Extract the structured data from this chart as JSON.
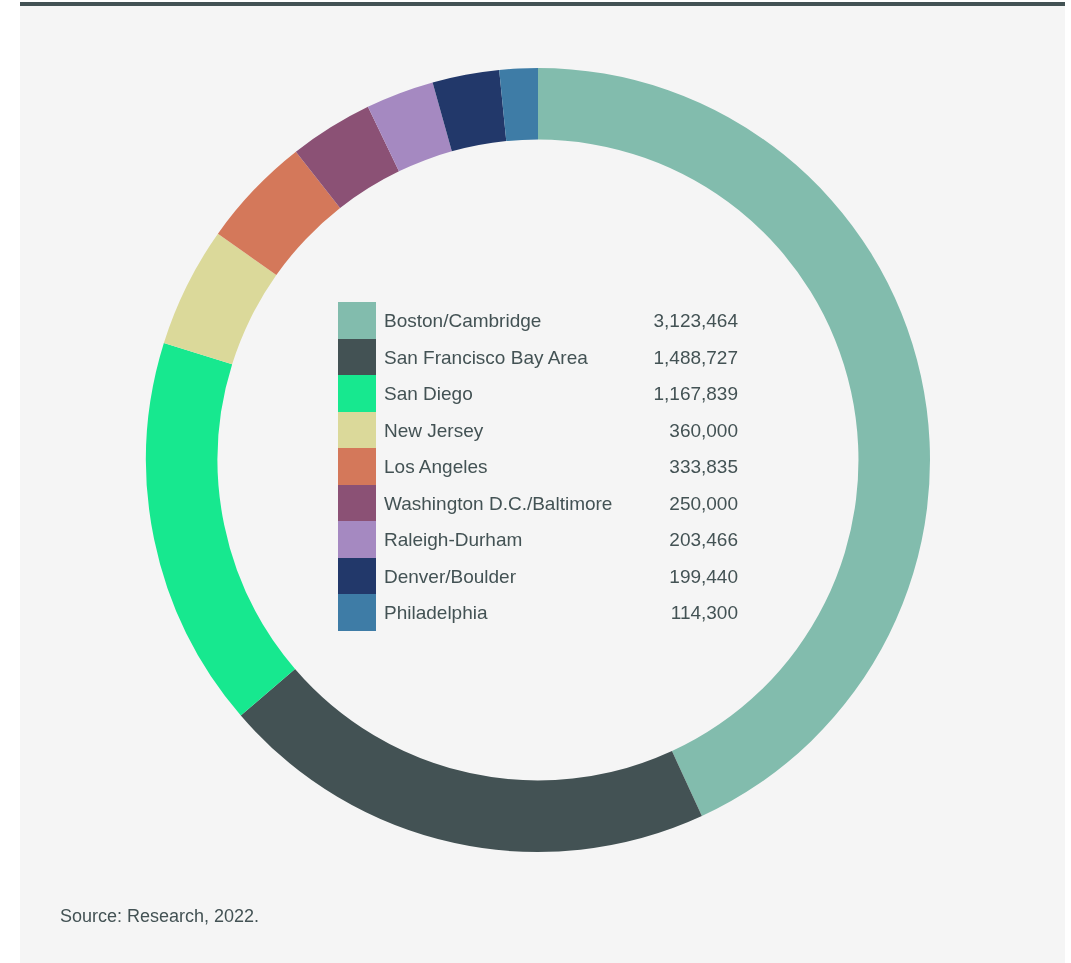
{
  "chart_data": {
    "type": "donut",
    "categories": [
      "Boston/Cambridge",
      "San Francisco Bay Area",
      "San Diego",
      "New Jersey",
      "Los Angeles",
      "Washington D.C./Baltimore",
      "Raleigh-Durham",
      "Denver/Boulder",
      "Philadelphia"
    ],
    "values": [
      3123464,
      1488727,
      1167839,
      360000,
      333835,
      250000,
      203466,
      199440,
      114300
    ],
    "colors": [
      "#82bcad",
      "#435254",
      "#17e88f",
      "#dbd99a",
      "#d4785a",
      "#8b5175",
      "#a589c1",
      "#22386a",
      "#3e7ca6"
    ],
    "value_labels": [
      "3,123,464",
      "1,488,727",
      "1,167,839",
      "360,000",
      "333,835",
      "250,000",
      "203,466",
      "199,440",
      "114,300"
    ],
    "legend": "center",
    "annotations": [
      "Source: Research, 2022."
    ]
  }
}
